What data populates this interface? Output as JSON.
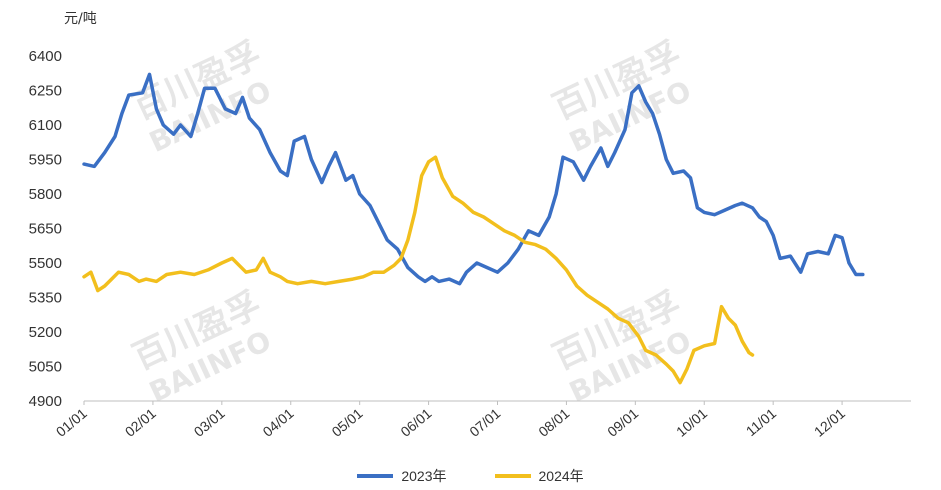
{
  "chart_data": {
    "type": "line",
    "unit_label": "元/吨",
    "y_ticks": [
      "6400",
      "6250",
      "6100",
      "5950",
      "5800",
      "5650",
      "5500",
      "5350",
      "5200",
      "5050",
      "4900"
    ],
    "ylim": [
      4900,
      6400
    ],
    "x_ticks": [
      "01/01",
      "02/01",
      "03/01",
      "04/01",
      "05/01",
      "06/01",
      "07/01",
      "08/01",
      "09/01",
      "10/01",
      "11/01",
      "12/01"
    ],
    "xlim_month_index": [
      0,
      12
    ],
    "grid": false,
    "legend_position": "bottom",
    "series": [
      {
        "name": "2023年",
        "color": "#3A6FC4",
        "points": [
          [
            0.0,
            5930
          ],
          [
            0.15,
            5920
          ],
          [
            0.3,
            5980
          ],
          [
            0.45,
            6050
          ],
          [
            0.55,
            6150
          ],
          [
            0.65,
            6230
          ],
          [
            0.85,
            6240
          ],
          [
            0.95,
            6320
          ],
          [
            1.05,
            6170
          ],
          [
            1.15,
            6100
          ],
          [
            1.3,
            6060
          ],
          [
            1.4,
            6100
          ],
          [
            1.55,
            6050
          ],
          [
            1.65,
            6150
          ],
          [
            1.75,
            6260
          ],
          [
            1.9,
            6260
          ],
          [
            2.05,
            6170
          ],
          [
            2.2,
            6150
          ],
          [
            2.3,
            6220
          ],
          [
            2.4,
            6130
          ],
          [
            2.55,
            6080
          ],
          [
            2.7,
            5980
          ],
          [
            2.85,
            5900
          ],
          [
            2.95,
            5880
          ],
          [
            3.05,
            6030
          ],
          [
            3.2,
            6050
          ],
          [
            3.3,
            5950
          ],
          [
            3.45,
            5850
          ],
          [
            3.55,
            5920
          ],
          [
            3.65,
            5980
          ],
          [
            3.8,
            5860
          ],
          [
            3.9,
            5880
          ],
          [
            4.0,
            5800
          ],
          [
            4.15,
            5750
          ],
          [
            4.25,
            5690
          ],
          [
            4.4,
            5600
          ],
          [
            4.55,
            5560
          ],
          [
            4.7,
            5480
          ],
          [
            4.85,
            5440
          ],
          [
            4.95,
            5420
          ],
          [
            5.05,
            5440
          ],
          [
            5.15,
            5420
          ],
          [
            5.3,
            5430
          ],
          [
            5.45,
            5410
          ],
          [
            5.55,
            5460
          ],
          [
            5.7,
            5500
          ],
          [
            5.85,
            5480
          ],
          [
            6.0,
            5460
          ],
          [
            6.15,
            5500
          ],
          [
            6.3,
            5560
          ],
          [
            6.45,
            5640
          ],
          [
            6.6,
            5620
          ],
          [
            6.75,
            5700
          ],
          [
            6.85,
            5800
          ],
          [
            6.95,
            5960
          ],
          [
            7.1,
            5940
          ],
          [
            7.25,
            5860
          ],
          [
            7.35,
            5920
          ],
          [
            7.5,
            6000
          ],
          [
            7.6,
            5920
          ],
          [
            7.7,
            5980
          ],
          [
            7.85,
            6080
          ],
          [
            7.95,
            6240
          ],
          [
            8.05,
            6270
          ],
          [
            8.15,
            6200
          ],
          [
            8.25,
            6150
          ],
          [
            8.35,
            6060
          ],
          [
            8.45,
            5950
          ],
          [
            8.55,
            5890
          ],
          [
            8.7,
            5900
          ],
          [
            8.8,
            5870
          ],
          [
            8.9,
            5740
          ],
          [
            9.0,
            5720
          ],
          [
            9.15,
            5710
          ],
          [
            9.3,
            5730
          ],
          [
            9.45,
            5750
          ],
          [
            9.55,
            5760
          ],
          [
            9.7,
            5740
          ],
          [
            9.8,
            5700
          ],
          [
            9.9,
            5680
          ],
          [
            10.0,
            5620
          ],
          [
            10.1,
            5520
          ],
          [
            10.25,
            5530
          ],
          [
            10.4,
            5460
          ],
          [
            10.5,
            5540
          ],
          [
            10.65,
            5550
          ],
          [
            10.8,
            5540
          ],
          [
            10.9,
            5620
          ],
          [
            11.0,
            5610
          ],
          [
            11.1,
            5500
          ],
          [
            11.2,
            5450
          ],
          [
            11.3,
            5450
          ]
        ]
      },
      {
        "name": "2024年",
        "color": "#F2BF1D",
        "points": [
          [
            0.0,
            5440
          ],
          [
            0.1,
            5460
          ],
          [
            0.2,
            5380
          ],
          [
            0.3,
            5400
          ],
          [
            0.4,
            5430
          ],
          [
            0.5,
            5460
          ],
          [
            0.65,
            5450
          ],
          [
            0.8,
            5420
          ],
          [
            0.9,
            5430
          ],
          [
            1.05,
            5420
          ],
          [
            1.2,
            5450
          ],
          [
            1.4,
            5460
          ],
          [
            1.6,
            5450
          ],
          [
            1.8,
            5470
          ],
          [
            2.0,
            5500
          ],
          [
            2.15,
            5520
          ],
          [
            2.25,
            5490
          ],
          [
            2.35,
            5460
          ],
          [
            2.5,
            5470
          ],
          [
            2.6,
            5520
          ],
          [
            2.7,
            5460
          ],
          [
            2.85,
            5440
          ],
          [
            2.95,
            5420
          ],
          [
            3.1,
            5410
          ],
          [
            3.3,
            5420
          ],
          [
            3.5,
            5410
          ],
          [
            3.7,
            5420
          ],
          [
            3.9,
            5430
          ],
          [
            4.05,
            5440
          ],
          [
            4.2,
            5460
          ],
          [
            4.35,
            5460
          ],
          [
            4.5,
            5490
          ],
          [
            4.6,
            5520
          ],
          [
            4.7,
            5600
          ],
          [
            4.8,
            5720
          ],
          [
            4.9,
            5880
          ],
          [
            5.0,
            5940
          ],
          [
            5.1,
            5960
          ],
          [
            5.2,
            5870
          ],
          [
            5.35,
            5790
          ],
          [
            5.5,
            5760
          ],
          [
            5.65,
            5720
          ],
          [
            5.8,
            5700
          ],
          [
            5.95,
            5670
          ],
          [
            6.1,
            5640
          ],
          [
            6.25,
            5620
          ],
          [
            6.4,
            5590
          ],
          [
            6.55,
            5580
          ],
          [
            6.7,
            5560
          ],
          [
            6.85,
            5520
          ],
          [
            7.0,
            5470
          ],
          [
            7.15,
            5400
          ],
          [
            7.3,
            5360
          ],
          [
            7.45,
            5330
          ],
          [
            7.6,
            5300
          ],
          [
            7.75,
            5260
          ],
          [
            7.9,
            5240
          ],
          [
            8.05,
            5180
          ],
          [
            8.15,
            5120
          ],
          [
            8.3,
            5100
          ],
          [
            8.45,
            5060
          ],
          [
            8.55,
            5030
          ],
          [
            8.65,
            4980
          ],
          [
            8.75,
            5040
          ],
          [
            8.85,
            5120
          ],
          [
            9.0,
            5140
          ],
          [
            9.15,
            5150
          ],
          [
            9.25,
            5310
          ],
          [
            9.35,
            5260
          ],
          [
            9.45,
            5230
          ],
          [
            9.55,
            5160
          ],
          [
            9.65,
            5110
          ],
          [
            9.7,
            5100
          ]
        ]
      }
    ]
  },
  "watermark": [
    "百川盈孚",
    "BAIINFO"
  ]
}
